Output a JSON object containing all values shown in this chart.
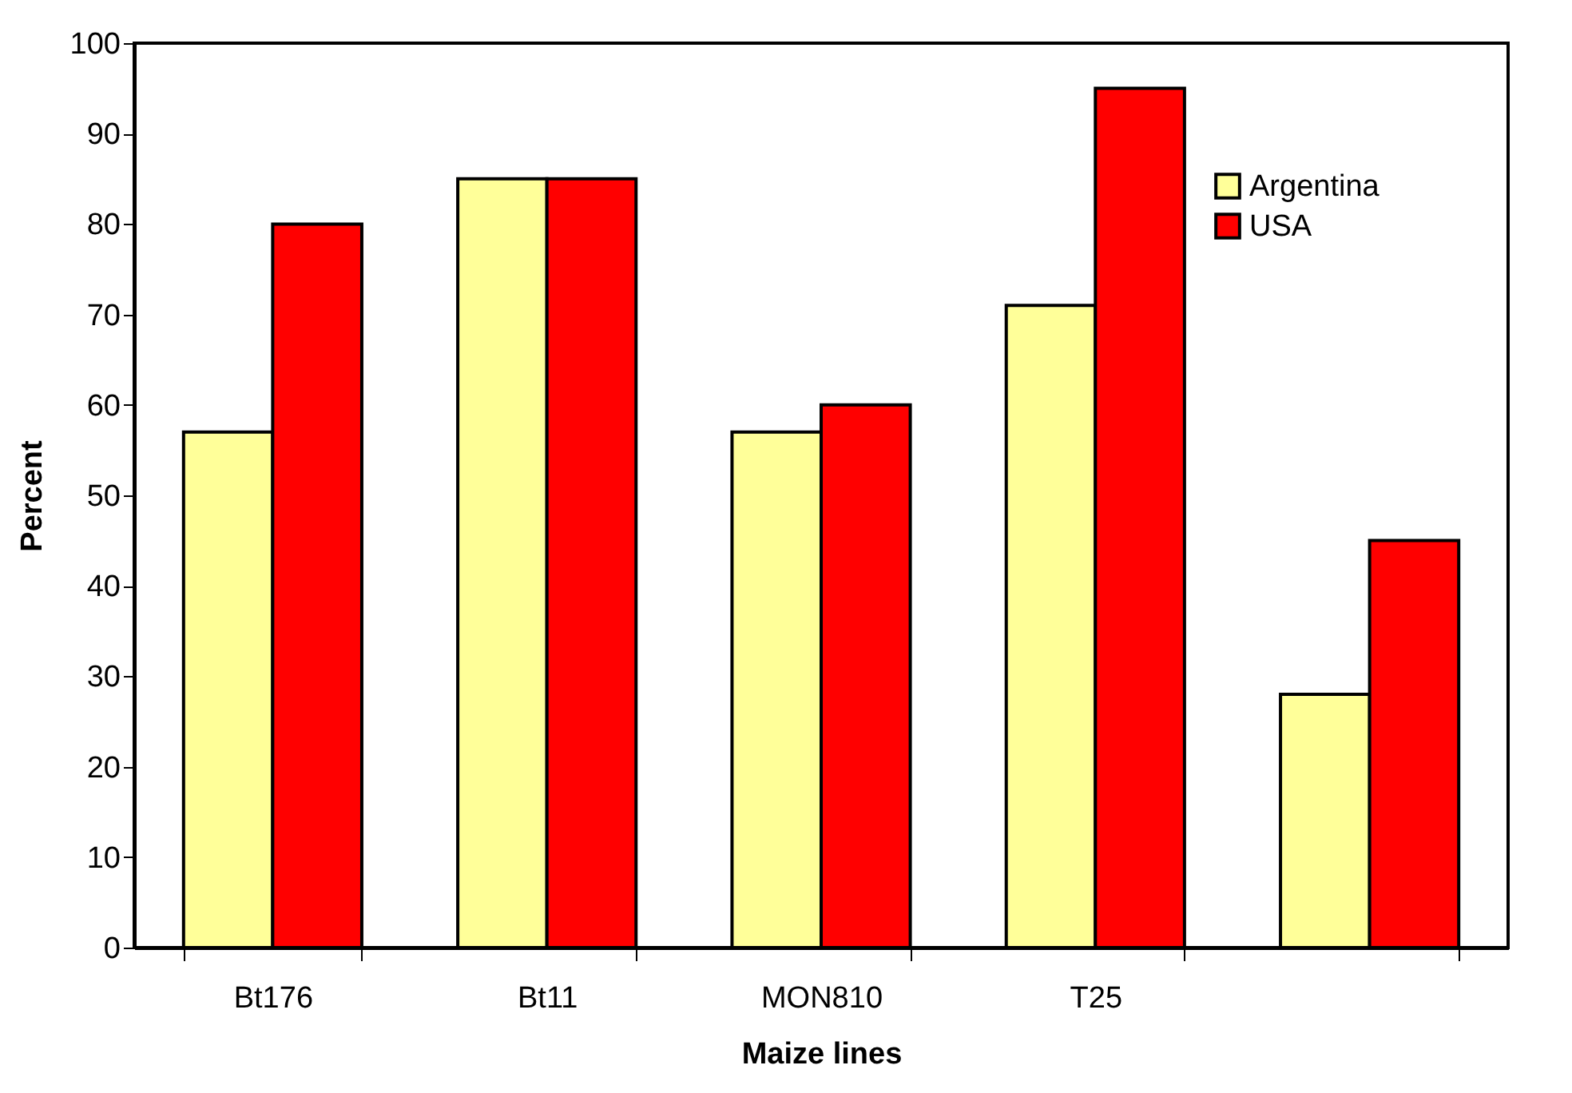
{
  "chart_data": {
    "type": "bar",
    "xlabel": "Maize lines",
    "ylabel": "Percent",
    "categories": [
      "Bt176",
      "Bt11",
      "MON810",
      "T25",
      null
    ],
    "series": [
      {
        "name": "Argentina",
        "color": "#ffff99",
        "values": [
          57,
          85,
          57,
          71,
          28
        ]
      },
      {
        "name": "USA",
        "color": "#ff0000",
        "values": [
          80,
          85,
          60,
          95,
          45
        ]
      }
    ],
    "ylim": [
      0,
      100
    ],
    "yticks": [
      0,
      10,
      20,
      30,
      40,
      50,
      60,
      70,
      80,
      90,
      100
    ],
    "grid": false,
    "legend": "top right"
  }
}
